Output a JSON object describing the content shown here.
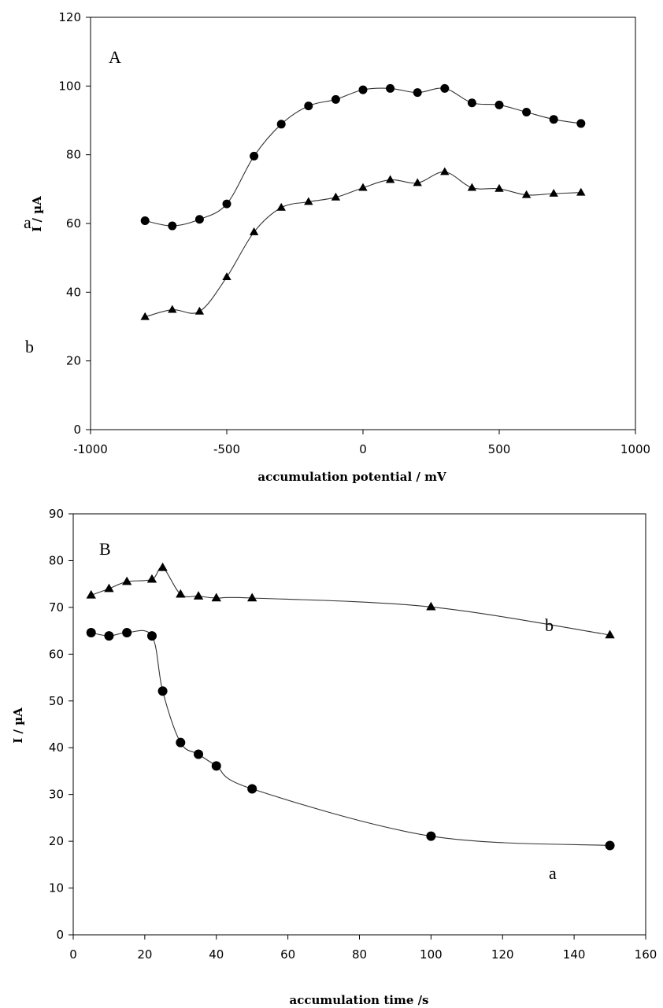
{
  "chart_data": [
    {
      "type": "scatter",
      "panel_label": "A",
      "xlabel": "accumulation potential / mV",
      "ylabel": "I / µA",
      "xlim": [
        -1000,
        1000
      ],
      "ylim": [
        0,
        120
      ],
      "xticks": [
        -1000,
        -500,
        0,
        500,
        1000
      ],
      "yticks": [
        0,
        20,
        40,
        60,
        80,
        100,
        120
      ],
      "grid": false,
      "legend": "none",
      "series": [
        {
          "name": "a",
          "marker": "circle",
          "x": [
            -800,
            -700,
            -600,
            -500,
            -400,
            -300,
            -200,
            -100,
            0,
            100,
            200,
            300,
            400,
            500,
            600,
            700,
            800
          ],
          "values": [
            60.8,
            59.3,
            61.2,
            65.7,
            79.6,
            88.9,
            94.2,
            96.1,
            98.9,
            99.3,
            98.1,
            99.3,
            95.1,
            94.5,
            92.4,
            90.3,
            89.1
          ]
        },
        {
          "name": "b",
          "marker": "triangle",
          "x": [
            -800,
            -700,
            -600,
            -500,
            -400,
            -300,
            -200,
            -100,
            0,
            100,
            200,
            300,
            400,
            500,
            600,
            700,
            800
          ],
          "values": [
            32.8,
            34.9,
            34.4,
            44.4,
            57.5,
            64.6,
            66.3,
            67.6,
            70.4,
            72.7,
            71.8,
            75.0,
            70.4,
            70.1,
            68.3,
            68.7,
            69.0
          ]
        }
      ]
    },
    {
      "type": "scatter",
      "panel_label": "B",
      "xlabel": "accumulation time /s",
      "ylabel": "I / µA",
      "xlim": [
        0,
        160
      ],
      "ylim": [
        0,
        90
      ],
      "xticks": [
        0,
        20,
        40,
        60,
        80,
        100,
        120,
        140,
        160
      ],
      "yticks": [
        0,
        10,
        20,
        30,
        40,
        50,
        60,
        70,
        80,
        90
      ],
      "grid": false,
      "legend": "none",
      "series": [
        {
          "name": "a",
          "marker": "circle",
          "x": [
            5,
            10,
            15,
            22,
            25,
            30,
            35,
            40,
            50,
            100,
            150
          ],
          "values": [
            64.6,
            63.9,
            64.6,
            63.9,
            52.1,
            41.1,
            38.6,
            36.1,
            31.2,
            21.1,
            19.1
          ]
        },
        {
          "name": "b",
          "marker": "triangle",
          "x": [
            5,
            10,
            15,
            22,
            25,
            30,
            35,
            40,
            50,
            100,
            150
          ],
          "values": [
            72.6,
            74.0,
            75.5,
            76.0,
            78.5,
            72.8,
            72.4,
            72.0,
            72.0,
            70.1,
            64.1
          ]
        }
      ]
    }
  ]
}
